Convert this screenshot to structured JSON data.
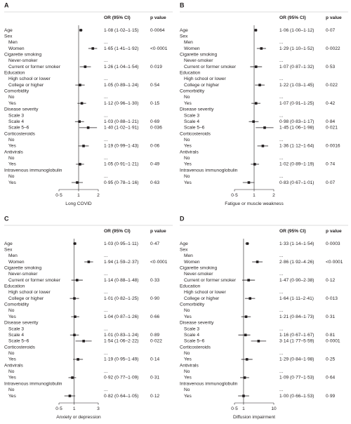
{
  "chart_data": {
    "type": "forest",
    "columns": {
      "or": "OR (95% CI)",
      "p": "p value"
    },
    "reference": 1,
    "log_x": true,
    "color": "#231f20",
    "groups": [
      {
        "name": "Age"
      },
      {
        "name": "Sex",
        "levels": [
          "Men",
          "Women"
        ]
      },
      {
        "name": "Cigarette smoking",
        "levels": [
          "Never-smoker",
          "Current or former smoker"
        ]
      },
      {
        "name": "Education",
        "levels": [
          "High school or lower",
          "College or higher"
        ]
      },
      {
        "name": "Comorbidity",
        "levels": [
          "No",
          "Yes"
        ]
      },
      {
        "name": "Disease severity",
        "levels": [
          "Scale 3",
          "Scale 4",
          "Scale 5–6"
        ]
      },
      {
        "name": "Corticosteroids",
        "levels": [
          "No",
          "Yes"
        ]
      },
      {
        "name": "Antivirals",
        "levels": [
          "No",
          "Yes"
        ]
      },
      {
        "name": "Intravenous immunoglobulin",
        "levels": [
          "No",
          "Yes"
        ]
      }
    ],
    "panels": [
      {
        "letter": "A",
        "xlabel": "Long COVID",
        "xlim": [
          0.5,
          2
        ],
        "xticks": [
          {
            "value": 0.5,
            "label": "0·5"
          },
          1,
          2
        ],
        "estimates": [
          {
            "or": 1.08,
            "lo": 1.02,
            "hi": 1.15,
            "ci_label": "1·08 (1·02–1·15)",
            "p": "0·0064"
          },
          {
            "ci_label": "..."
          },
          {
            "or": 1.65,
            "lo": 1.41,
            "hi": 1.92,
            "ci_label": "1·65 (1·41–1·92)",
            "p": "<0·0001"
          },
          {
            "ci_label": "..."
          },
          {
            "or": 1.26,
            "lo": 1.04,
            "hi": 1.54,
            "ci_label": "1·26 (1·04–1·54)",
            "p": "0·019"
          },
          {
            "ci_label": "..."
          },
          {
            "or": 1.05,
            "lo": 0.89,
            "hi": 1.24,
            "ci_label": "1·05 (0·89–1·24)",
            "p": "0·54"
          },
          {
            "ci_label": "..."
          },
          {
            "or": 1.12,
            "lo": 0.96,
            "hi": 1.3,
            "ci_label": "1·12 (0·96–1·30)",
            "p": "0·15"
          },
          {
            "ci_label": "..."
          },
          {
            "or": 1.03,
            "lo": 0.88,
            "hi": 1.21,
            "ci_label": "1·03 (0·88–1·21)",
            "p": "0·69"
          },
          {
            "or": 1.4,
            "lo": 1.02,
            "hi": 1.91,
            "ci_label": "1·40 (1·02–1·91)",
            "p": "0·036"
          },
          {
            "ci_label": "..."
          },
          {
            "or": 1.19,
            "lo": 0.99,
            "hi": 1.43,
            "ci_label": "1·19 (0·99–1·43)",
            "p": "0·06"
          },
          {
            "ci_label": "..."
          },
          {
            "or": 1.05,
            "lo": 0.91,
            "hi": 1.21,
            "ci_label": "1·05 (0·91–1·21)",
            "p": "0·49"
          },
          {
            "ci_label": "..."
          },
          {
            "or": 0.95,
            "lo": 0.78,
            "hi": 1.16,
            "ci_label": "0·95 (0·78–1·16)",
            "p": "0·63"
          }
        ]
      },
      {
        "letter": "B",
        "xlabel": "Fatigue or muscle weakness",
        "xlim": [
          0.5,
          2
        ],
        "xticks": [
          {
            "value": 0.5,
            "label": "0·5"
          },
          1,
          2
        ],
        "estimates": [
          {
            "or": 1.06,
            "lo": 1.0,
            "hi": 1.12,
            "ci_label": "1·06 (1·00–1·12)",
            "p": "0·07"
          },
          {
            "ci_label": "..."
          },
          {
            "or": 1.29,
            "lo": 1.1,
            "hi": 1.52,
            "ci_label": "1·29 (1·10–1·52)",
            "p": "0·0022"
          },
          {
            "ci_label": "..."
          },
          {
            "or": 1.07,
            "lo": 0.87,
            "hi": 1.32,
            "ci_label": "1·07 (0·87–1·32)",
            "p": "0·53"
          },
          {
            "ci_label": "..."
          },
          {
            "or": 1.22,
            "lo": 1.03,
            "hi": 1.45,
            "ci_label": "1·22 (1·03–1·45)",
            "p": "0·022"
          },
          {
            "ci_label": "..."
          },
          {
            "or": 1.07,
            "lo": 0.91,
            "hi": 1.25,
            "ci_label": "1·07 (0·91–1·25)",
            "p": "0·42"
          },
          {
            "ci_label": "..."
          },
          {
            "or": 0.98,
            "lo": 0.83,
            "hi": 1.17,
            "ci_label": "0·98 (0·83–1·17)",
            "p": "0·84"
          },
          {
            "or": 1.45,
            "lo": 1.06,
            "hi": 1.98,
            "ci_label": "1·45 (1·06–1·98)",
            "p": "0·021"
          },
          {
            "ci_label": "..."
          },
          {
            "or": 1.36,
            "lo": 1.12,
            "hi": 1.64,
            "ci_label": "1·36 (1·12–1·64)",
            "p": "0·0016"
          },
          {
            "ci_label": "..."
          },
          {
            "or": 1.02,
            "lo": 0.89,
            "hi": 1.19,
            "ci_label": "1·02 (0·89–1·19)",
            "p": "0·74"
          },
          {
            "ci_label": "..."
          },
          {
            "or": 0.83,
            "lo": 0.67,
            "hi": 1.01,
            "ci_label": "0·83 (0·67–1·01)",
            "p": "0·07"
          }
        ]
      },
      {
        "letter": "C",
        "xlabel": "Anxiety or depression",
        "xlim": [
          0.5,
          3
        ],
        "xticks": [
          {
            "value": 0.5,
            "label": "0·5"
          },
          1,
          3
        ],
        "estimates": [
          {
            "or": 1.03,
            "lo": 0.95,
            "hi": 1.11,
            "ci_label": "1·03 (0·95–1·11)",
            "p": "0·47"
          },
          {
            "ci_label": "..."
          },
          {
            "or": 1.94,
            "lo": 1.59,
            "hi": 2.37,
            "ci_label": "1·94 (1·59–2·37)",
            "p": "<0·0001"
          },
          {
            "ci_label": "..."
          },
          {
            "or": 1.14,
            "lo": 0.88,
            "hi": 1.48,
            "ci_label": "1·14 (0·88–1·48)",
            "p": "0·33"
          },
          {
            "ci_label": "..."
          },
          {
            "or": 1.01,
            "lo": 0.82,
            "hi": 1.25,
            "ci_label": "1·01 (0·82–1·25)",
            "p": "0·90"
          },
          {
            "ci_label": "..."
          },
          {
            "or": 1.04,
            "lo": 0.87,
            "hi": 1.26,
            "ci_label": "1·04 (0·87–1·26)",
            "p": "0·66"
          },
          {
            "ci_label": "..."
          },
          {
            "or": 1.01,
            "lo": 0.83,
            "hi": 1.24,
            "ci_label": "1·01 (0·83–1·24)",
            "p": "0·89"
          },
          {
            "or": 1.54,
            "lo": 1.06,
            "hi": 2.22,
            "ci_label": "1·54 (1·06–2·22)",
            "p": "0·022"
          },
          {
            "ci_label": "..."
          },
          {
            "or": 1.19,
            "lo": 0.95,
            "hi": 1.49,
            "ci_label": "1·19 (0·95–1·49)",
            "p": "0·14"
          },
          {
            "ci_label": "..."
          },
          {
            "or": 0.92,
            "lo": 0.77,
            "hi": 1.09,
            "ci_label": "0·92 (0·77–1·09)",
            "p": "0·31"
          },
          {
            "ci_label": "..."
          },
          {
            "or": 0.82,
            "lo": 0.64,
            "hi": 1.05,
            "ci_label": "0·82 (0·64–1·05)",
            "p": "0·12"
          }
        ]
      },
      {
        "letter": "D",
        "xlabel": "Diffusion impairment",
        "xlim": [
          0.5,
          10
        ],
        "xticks": [
          {
            "value": 0.5,
            "label": "0·5"
          },
          1,
          10
        ],
        "estimates": [
          {
            "or": 1.33,
            "lo": 1.14,
            "hi": 1.54,
            "ci_label": "1·33 (1·14–1·54)",
            "p": "0·0003"
          },
          {
            "ci_label": "..."
          },
          {
            "or": 2.86,
            "lo": 1.92,
            "hi": 4.26,
            "ci_label": "2·86 (1·92–4·26)",
            "p": "<0·0001"
          },
          {
            "ci_label": "..."
          },
          {
            "or": 1.47,
            "lo": 0.9,
            "hi": 2.38,
            "ci_label": "1·47 (0·90–2·38)",
            "p": "0·12"
          },
          {
            "ci_label": "..."
          },
          {
            "or": 1.64,
            "lo": 1.11,
            "hi": 2.41,
            "ci_label": "1·64 (1·11–2·41)",
            "p": "0·013"
          },
          {
            "ci_label": "..."
          },
          {
            "or": 1.21,
            "lo": 0.84,
            "hi": 1.73,
            "ci_label": "1·21 (0·84–1·73)",
            "p": "0·31"
          },
          {
            "ci_label": "..."
          },
          {
            "or": 1.16,
            "lo": 0.67,
            "hi": 1.67,
            "ci_label": "1·16 (0·67–1·67)",
            "p": "0·81"
          },
          {
            "or": 3.14,
            "lo": 1.77,
            "hi": 5.59,
            "ci_label": "3·14 (1·77–5·59)",
            "p": "0·0001"
          },
          {
            "ci_label": "..."
          },
          {
            "or": 1.29,
            "lo": 0.84,
            "hi": 1.98,
            "ci_label": "1·29 (0·84–1·98)",
            "p": "0·25"
          },
          {
            "ci_label": "..."
          },
          {
            "or": 1.09,
            "lo": 0.77,
            "hi": 1.53,
            "ci_label": "1·09 (0·77–1·53)",
            "p": "0·64"
          },
          {
            "ci_label": "..."
          },
          {
            "or": 1.0,
            "lo": 0.66,
            "hi": 1.53,
            "ci_label": "1·00 (0·66–1·53)",
            "p": "0·99"
          }
        ]
      }
    ]
  }
}
